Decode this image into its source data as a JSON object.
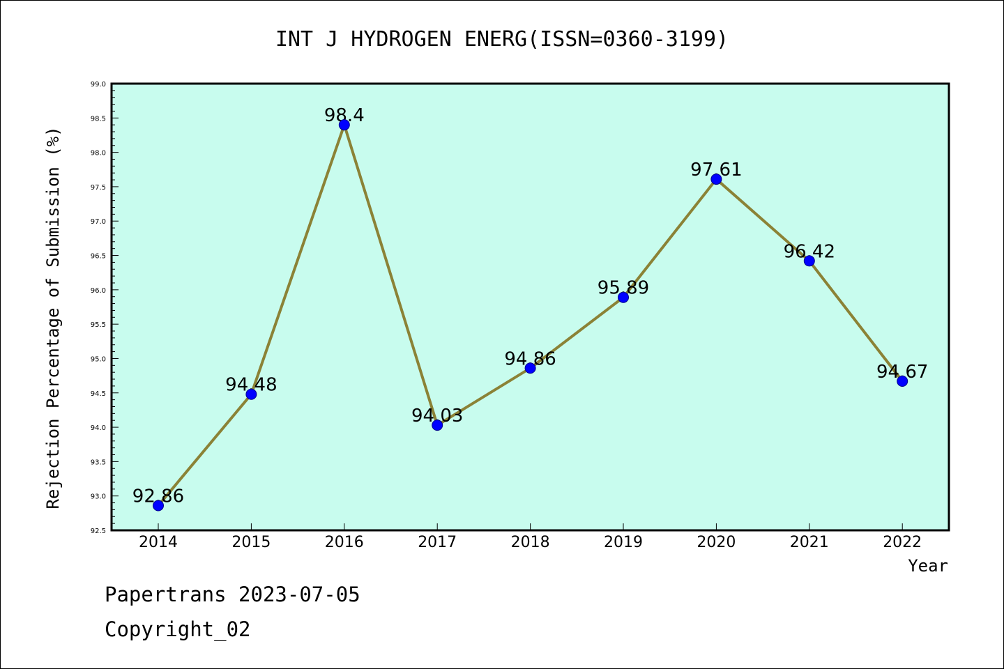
{
  "chart_data": {
    "type": "line",
    "title": "INT J HYDROGEN ENERG(ISSN=0360-3199)",
    "xlabel": "Year",
    "ylabel": "Rejection Percentage of Submission (%)",
    "categories": [
      "2014",
      "2015",
      "2016",
      "2017",
      "2018",
      "2019",
      "2020",
      "2021",
      "2022"
    ],
    "series": [
      {
        "values": [
          92.86,
          94.48,
          98.4,
          94.03,
          94.86,
          95.89,
          97.61,
          96.42,
          94.67
        ],
        "labels": [
          "92.86",
          "94.48",
          "98.4",
          "94.03",
          "94.86",
          "95.89",
          "97.61",
          "96.42",
          "94.67"
        ]
      }
    ],
    "ylim": [
      92.5,
      99.0
    ],
    "yticks": [
      "92.5",
      "93.0",
      "93.5",
      "94.0",
      "94.5",
      "95.0",
      "95.5",
      "96.0",
      "96.5",
      "97.0",
      "97.5",
      "98.0",
      "98.5",
      "99.0"
    ],
    "grid": false,
    "colors": {
      "plot_background": "#c8fcee",
      "line": "#8b8236",
      "marker": "#0000ff",
      "marker_edge": "#00008b"
    }
  },
  "footer": {
    "line1": "Papertrans 2023-07-05",
    "line2": "Copyright_02"
  }
}
